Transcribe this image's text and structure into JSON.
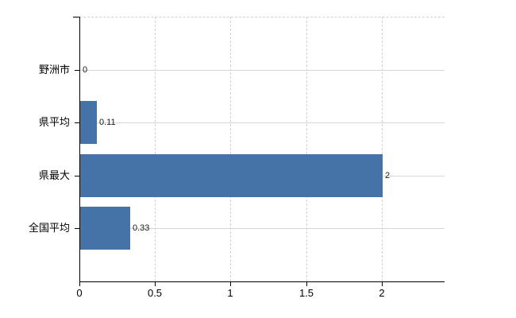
{
  "chart_data": {
    "type": "bar",
    "orientation": "horizontal",
    "title": "",
    "categories": [
      "野洲市",
      "県平均",
      "県最大",
      "全国平均"
    ],
    "values": [
      0,
      0.11,
      2,
      0.33
    ],
    "value_labels": [
      "0",
      "0.11",
      "2",
      "0.33"
    ],
    "xlabel": "",
    "ylabel": "",
    "xlim": [
      0,
      2.41
    ],
    "x_ticks": [
      0,
      0.5,
      1,
      1.5,
      2
    ],
    "x_tick_labels": [
      "0",
      "0.5",
      "1",
      "1.5",
      "2"
    ],
    "legend": "none",
    "grid": {
      "vertical_style": "dashed",
      "horizontal_style": "solid"
    }
  },
  "colors": {
    "bar": "#4572a7",
    "axis": "#000000",
    "grid_horizontal": "#d6d6d6",
    "grid_vertical": "#d2d2d2",
    "category_label": "#000000",
    "value_label": "#1a1a1a",
    "background": "#ffffff"
  }
}
